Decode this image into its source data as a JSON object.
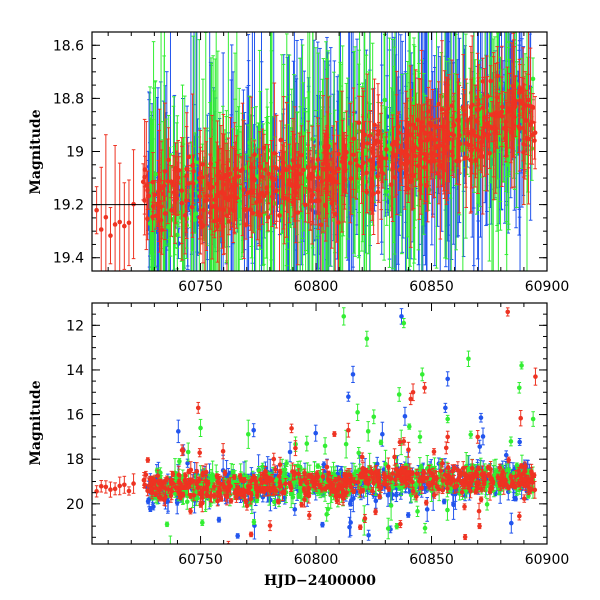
{
  "chart_data": [
    {
      "type": "scatter",
      "panel": "top",
      "title": "",
      "xlabel": "",
      "ylabel": "Magnitude",
      "xlim": [
        60703,
        60900
      ],
      "ylim": [
        19.45,
        18.55
      ],
      "y_inverted": true,
      "x_ticks": [
        60750,
        60800,
        60850,
        60900
      ],
      "x_tick_labels": [
        "60750",
        "60800",
        "60850",
        "60900"
      ],
      "y_ticks": [
        18.6,
        18.8,
        19.0,
        19.2,
        19.4
      ],
      "y_tick_labels": [
        "18.6",
        "18.8",
        "19",
        "19.2",
        "19.4"
      ],
      "grid": false,
      "legend": "none",
      "series": [
        {
          "color": "#2255ee",
          "x": [
            60727,
            60745,
            60762,
            60781,
            60798,
            60816,
            60835,
            60852,
            60870,
            60885,
            60893
          ],
          "y": [
            19.2,
            19.17,
            19.15,
            19.12,
            19.1,
            19.05,
            19.0,
            18.95,
            18.9,
            18.85,
            18.88
          ]
        },
        {
          "color": "#33ee33",
          "x": [
            60728,
            60746,
            60764,
            60782,
            60800,
            60818,
            60836,
            60854,
            60872,
            60886,
            60894
          ],
          "y": [
            19.19,
            19.16,
            19.14,
            19.11,
            19.09,
            19.04,
            18.99,
            18.95,
            18.9,
            18.86,
            18.89
          ]
        },
        {
          "color": "#ee3322",
          "x": [
            60705,
            60710,
            60715,
            60720,
            60730,
            60750,
            60770,
            60790,
            60810,
            60830,
            60850,
            60870,
            60885,
            60895
          ],
          "y": [
            19.25,
            19.3,
            19.28,
            19.22,
            19.15,
            19.15,
            19.13,
            19.12,
            19.08,
            19.03,
            18.98,
            18.92,
            18.85,
            18.9
          ]
        }
      ]
    },
    {
      "type": "scatter",
      "panel": "bottom",
      "title": "",
      "xlabel": "HJD−2400000",
      "ylabel": "Magnitude",
      "xlim": [
        60703,
        60900
      ],
      "ylim": [
        21.8,
        11.0
      ],
      "y_inverted": true,
      "x_ticks": [
        60750,
        60800,
        60850,
        60900
      ],
      "x_tick_labels": [
        "60750",
        "60800",
        "60850",
        "60900"
      ],
      "y_ticks": [
        12,
        14,
        16,
        18,
        20
      ],
      "y_tick_labels": [
        "12",
        "14",
        "16",
        "18",
        "20"
      ],
      "grid": false,
      "legend": "none",
      "outliers": [
        {
          "color": "#33ee33",
          "x": 60812,
          "y": 11.6
        },
        {
          "color": "#33ee33",
          "x": 60822,
          "y": 12.6
        },
        {
          "color": "#2255ee",
          "x": 60837,
          "y": 11.6
        },
        {
          "color": "#33ee33",
          "x": 60838,
          "y": 11.9
        },
        {
          "color": "#ee3322",
          "x": 60883,
          "y": 11.4
        },
        {
          "color": "#33ee33",
          "x": 60866,
          "y": 13.5
        },
        {
          "color": "#33ee33",
          "x": 60889,
          "y": 13.8
        },
        {
          "color": "#33ee33",
          "x": 60846,
          "y": 14.2
        },
        {
          "color": "#2255ee",
          "x": 60816,
          "y": 14.2
        },
        {
          "color": "#ee3322",
          "x": 60895,
          "y": 14.3
        },
        {
          "color": "#2255ee",
          "x": 60857,
          "y": 14.4
        },
        {
          "color": "#33ee33",
          "x": 60888,
          "y": 14.8
        },
        {
          "color": "#ee3322",
          "x": 60847,
          "y": 14.8
        },
        {
          "color": "#ee3322",
          "x": 60842,
          "y": 15.0
        },
        {
          "color": "#33ee33",
          "x": 60836,
          "y": 15.1
        },
        {
          "color": "#2255ee",
          "x": 60814,
          "y": 15.2
        },
        {
          "color": "#ee3322",
          "x": 60841,
          "y": 15.3
        },
        {
          "color": "#ee3322",
          "x": 60749,
          "y": 15.7
        },
        {
          "color": "#2255ee",
          "x": 60856,
          "y": 15.7
        },
        {
          "color": "#33ee33",
          "x": 60818,
          "y": 15.9
        },
        {
          "color": "#33ee33",
          "x": 60825,
          "y": 16.1
        },
        {
          "color": "#33ee33",
          "x": 60857,
          "y": 16.2
        },
        {
          "color": "#33ee33",
          "x": 60894,
          "y": 16.2
        },
        {
          "color": "#33ee33",
          "x": 60750,
          "y": 16.6
        },
        {
          "color": "#2255ee",
          "x": 60773,
          "y": 16.7
        },
        {
          "color": "#ee3322",
          "x": 60814,
          "y": 16.7
        },
        {
          "color": "#33ee33",
          "x": 60867,
          "y": 16.9
        },
        {
          "color": "#33ee33",
          "x": 60845,
          "y": 17.0
        },
        {
          "color": "#ee3322",
          "x": 60857,
          "y": 17.0
        },
        {
          "color": "#ee3322",
          "x": 60870,
          "y": 17.0
        },
        {
          "color": "#ee3322",
          "x": 60838,
          "y": 17.2
        },
        {
          "color": "#ee3322",
          "x": 60742,
          "y": 17.6
        },
        {
          "color": "#33ee33",
          "x": 60796,
          "y": 17.3
        },
        {
          "color": "#ee3322",
          "x": 60820,
          "y": 17.9
        },
        {
          "color": "#ee3322",
          "x": 60834,
          "y": 17.9
        }
      ],
      "series": [
        {
          "color": "#2255ee",
          "x": [
            60727,
            60745,
            60762,
            60781,
            60798,
            60816,
            60835,
            60852,
            60870,
            60885,
            60893
          ],
          "y": [
            19.3,
            19.25,
            19.2,
            19.2,
            19.15,
            19.1,
            19.0,
            19.0,
            18.9,
            18.8,
            18.9
          ]
        },
        {
          "color": "#33ee33",
          "x": [
            60728,
            60746,
            60764,
            60782,
            60800,
            60818,
            60836,
            60854,
            60872,
            60886,
            60894
          ],
          "y": [
            19.3,
            19.25,
            19.2,
            19.15,
            19.1,
            19.05,
            19.0,
            18.95,
            18.9,
            18.85,
            18.9
          ]
        },
        {
          "color": "#ee3322",
          "x": [
            60705,
            60710,
            60715,
            60720,
            60730,
            60750,
            60770,
            60790,
            60810,
            60830,
            60850,
            60870,
            60885,
            60895
          ],
          "y": [
            19.3,
            19.4,
            19.3,
            19.2,
            19.2,
            19.2,
            19.15,
            19.1,
            19.1,
            19.0,
            19.0,
            18.9,
            18.85,
            18.9
          ]
        }
      ]
    }
  ]
}
